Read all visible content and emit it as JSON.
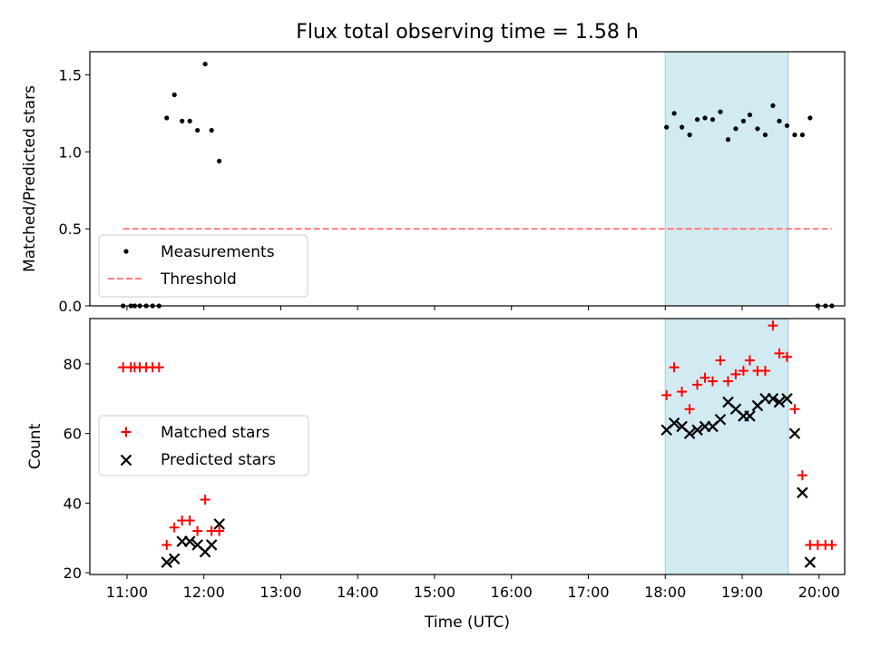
{
  "chart_data": {
    "title": "Flux total observing time = 1.58 h",
    "xlabel": "Time (UTC)",
    "x_ticks": [
      "11:00",
      "12:00",
      "13:00",
      "14:00",
      "15:00",
      "16:00",
      "17:00",
      "18:00",
      "19:00",
      "20:00"
    ],
    "xlim": [
      "10:31",
      "20:20"
    ],
    "shaded_interval": [
      "18:00",
      "19:36"
    ],
    "colors": {
      "measurements": "#000000",
      "threshold": "#ff7f7f",
      "matched": "#ff0000",
      "predicted": "#000000",
      "shade": "#add8e6"
    },
    "panels": [
      {
        "type": "scatter",
        "ylabel": "Matched/Predicted stars",
        "ylim": [
          0,
          1.65
        ],
        "y_ticks": [
          "0.0",
          "0.5",
          "1.0",
          "1.5"
        ],
        "legend_position": "lower-left",
        "series": [
          {
            "name": "Measurements",
            "kind": "points",
            "points": [
              [
                "10:57",
                0
              ],
              [
                "11:03",
                0
              ],
              [
                "11:06",
                0
              ],
              [
                "11:10",
                0
              ],
              [
                "11:15",
                0
              ],
              [
                "11:20",
                0
              ],
              [
                "11:25",
                0
              ],
              [
                "11:31",
                1.22
              ],
              [
                "11:37",
                1.37
              ],
              [
                "11:43",
                1.2
              ],
              [
                "11:49",
                1.2
              ],
              [
                "11:55",
                1.14
              ],
              [
                "12:01",
                1.57
              ],
              [
                "12:06",
                1.14
              ],
              [
                "12:12",
                0.94
              ],
              [
                "18:01",
                1.16
              ],
              [
                "18:07",
                1.25
              ],
              [
                "18:13",
                1.16
              ],
              [
                "18:19",
                1.11
              ],
              [
                "18:25",
                1.21
              ],
              [
                "18:31",
                1.22
              ],
              [
                "18:37",
                1.21
              ],
              [
                "18:43",
                1.26
              ],
              [
                "18:49",
                1.08
              ],
              [
                "18:55",
                1.15
              ],
              [
                "19:01",
                1.2
              ],
              [
                "19:06",
                1.24
              ],
              [
                "19:12",
                1.15
              ],
              [
                "19:18",
                1.11
              ],
              [
                "19:24",
                1.3
              ],
              [
                "19:29",
                1.2
              ],
              [
                "19:35",
                1.17
              ],
              [
                "19:41",
                1.11
              ],
              [
                "19:47",
                1.11
              ],
              [
                "19:53",
                1.22
              ],
              [
                "19:59",
                0
              ],
              [
                "20:05",
                0
              ],
              [
                "20:10",
                0
              ]
            ]
          },
          {
            "name": "Threshold",
            "kind": "dashed-line",
            "points": [
              [
                "10:57",
                0.5
              ],
              [
                "20:10",
                0.5
              ]
            ]
          }
        ]
      },
      {
        "type": "scatter",
        "ylabel": "Count",
        "ylim": [
          19.5,
          93
        ],
        "y_ticks": [
          "20",
          "40",
          "60",
          "80"
        ],
        "legend_position": "center-left",
        "series": [
          {
            "name": "Matched stars",
            "kind": "plus",
            "points": [
              [
                "10:57",
                79
              ],
              [
                "11:03",
                79
              ],
              [
                "11:06",
                79
              ],
              [
                "11:10",
                79
              ],
              [
                "11:15",
                79
              ],
              [
                "11:20",
                79
              ],
              [
                "11:25",
                79
              ],
              [
                "11:31",
                28
              ],
              [
                "11:37",
                33
              ],
              [
                "11:43",
                35
              ],
              [
                "11:49",
                35
              ],
              [
                "11:55",
                32
              ],
              [
                "12:01",
                41
              ],
              [
                "12:06",
                32
              ],
              [
                "12:12",
                32
              ],
              [
                "18:01",
                71
              ],
              [
                "18:07",
                79
              ],
              [
                "18:13",
                72
              ],
              [
                "18:19",
                67
              ],
              [
                "18:25",
                74
              ],
              [
                "18:31",
                76
              ],
              [
                "18:37",
                75
              ],
              [
                "18:43",
                81
              ],
              [
                "18:49",
                75
              ],
              [
                "18:55",
                77
              ],
              [
                "19:01",
                78
              ],
              [
                "19:06",
                81
              ],
              [
                "19:12",
                78
              ],
              [
                "19:18",
                78
              ],
              [
                "19:24",
                91
              ],
              [
                "19:29",
                83
              ],
              [
                "19:35",
                82
              ],
              [
                "19:41",
                67
              ],
              [
                "19:47",
                48
              ],
              [
                "19:53",
                28
              ],
              [
                "19:59",
                28
              ],
              [
                "20:05",
                28
              ],
              [
                "20:10",
                28
              ]
            ]
          },
          {
            "name": "Predicted stars",
            "kind": "x",
            "points": [
              [
                "11:31",
                23
              ],
              [
                "11:37",
                24
              ],
              [
                "11:43",
                29
              ],
              [
                "11:49",
                29
              ],
              [
                "11:55",
                28
              ],
              [
                "12:01",
                26
              ],
              [
                "12:06",
                28
              ],
              [
                "12:12",
                34
              ],
              [
                "18:01",
                61
              ],
              [
                "18:07",
                63
              ],
              [
                "18:13",
                62
              ],
              [
                "18:19",
                60
              ],
              [
                "18:25",
                61
              ],
              [
                "18:31",
                62
              ],
              [
                "18:37",
                62
              ],
              [
                "18:43",
                64
              ],
              [
                "18:49",
                69
              ],
              [
                "18:55",
                67
              ],
              [
                "19:01",
                65
              ],
              [
                "19:06",
                65
              ],
              [
                "19:12",
                68
              ],
              [
                "19:18",
                70
              ],
              [
                "19:24",
                70
              ],
              [
                "19:29",
                69
              ],
              [
                "19:35",
                70
              ],
              [
                "19:41",
                60
              ],
              [
                "19:47",
                43
              ],
              [
                "19:53",
                23
              ]
            ]
          }
        ]
      }
    ]
  }
}
